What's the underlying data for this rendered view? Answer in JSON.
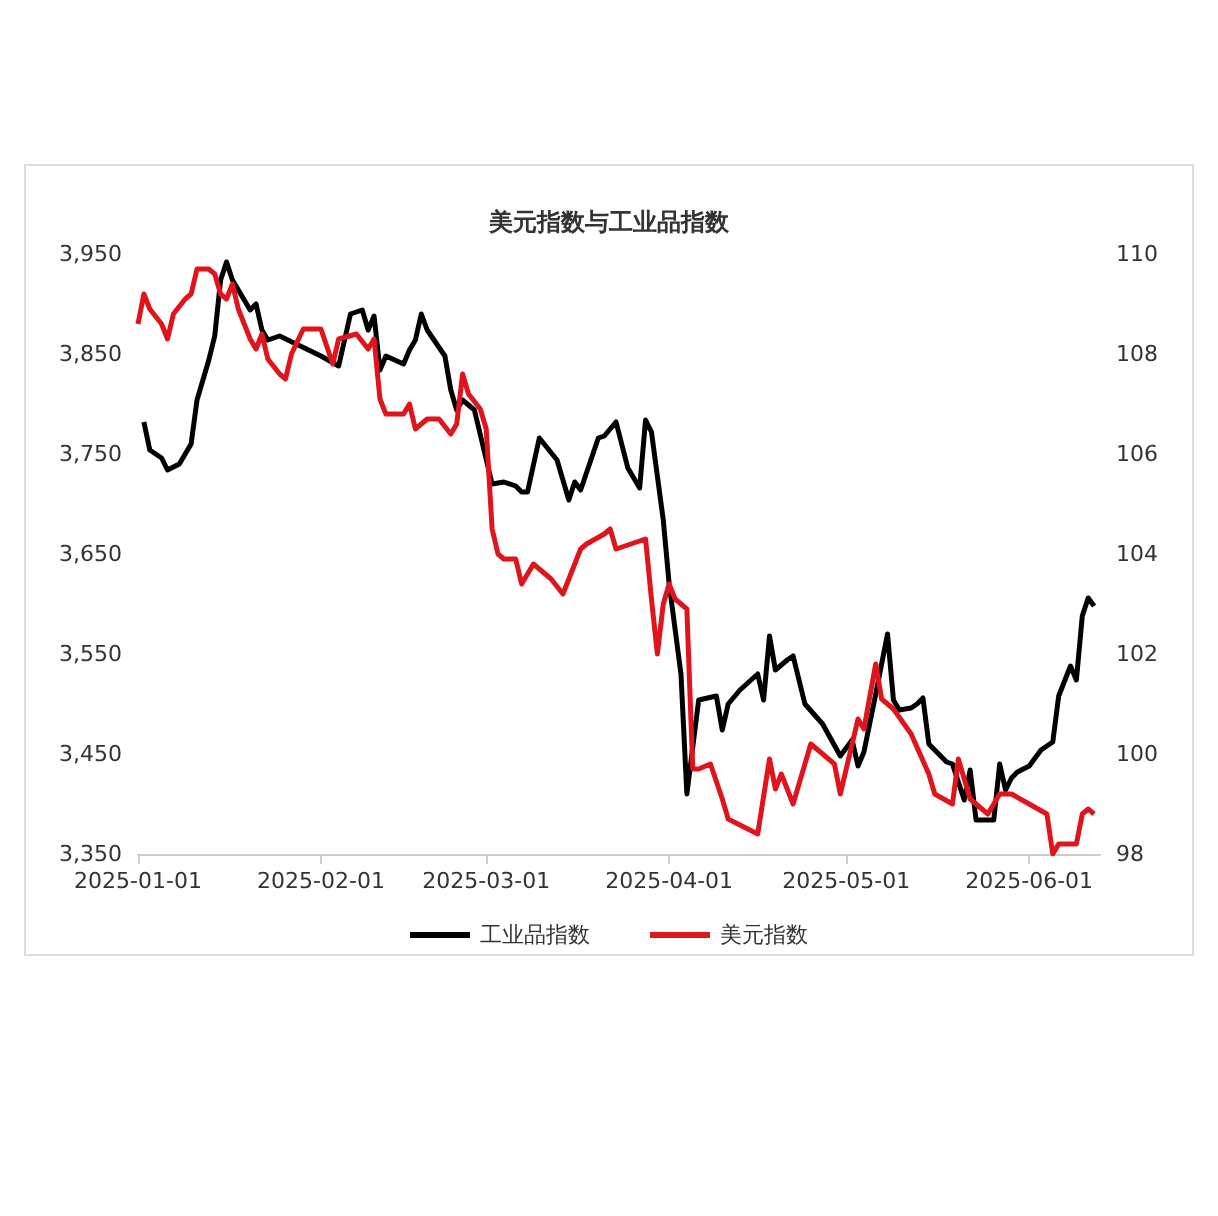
{
  "chart_data": {
    "type": "line",
    "title": "美元指数与工业品指数",
    "xlim": [
      "2025-01-01",
      "2025-06-13"
    ],
    "xticks": [
      "2025-01-01",
      "2025-02-01",
      "2025-03-01",
      "2025-04-01",
      "2025-05-01",
      "2025-06-01"
    ],
    "ylim": [
      3350,
      3950
    ],
    "yticks": [
      {
        "value": 3350,
        "label": "3,350"
      },
      {
        "value": 3450,
        "label": "3,450"
      },
      {
        "value": 3550,
        "label": "3,550"
      },
      {
        "value": 3650,
        "label": "3,650"
      },
      {
        "value": 3750,
        "label": "3,750"
      },
      {
        "value": 3850,
        "label": "3,850"
      },
      {
        "value": 3950,
        "label": "3,950"
      }
    ],
    "y2lim": [
      98,
      110
    ],
    "y2ticks": [
      98,
      100,
      102,
      104,
      106,
      108,
      110
    ],
    "grid": false,
    "legend": "bottom",
    "series": [
      {
        "name": "工业品指数",
        "color": "#000000",
        "x": [
          "2025-01-02",
          "2025-01-03",
          "2025-01-05",
          "2025-01-06",
          "2025-01-08",
          "2025-01-10",
          "2025-01-11",
          "2025-01-13",
          "2025-01-14",
          "2025-01-15",
          "2025-01-16",
          "2025-01-17",
          "2025-01-19",
          "2025-01-20",
          "2025-01-21",
          "2025-01-22",
          "2025-01-23",
          "2025-01-25",
          "2025-02-01",
          "2025-02-04",
          "2025-02-06",
          "2025-02-08",
          "2025-02-09",
          "2025-02-10",
          "2025-02-11",
          "2025-02-12",
          "2025-02-15",
          "2025-02-16",
          "2025-02-17",
          "2025-02-18",
          "2025-02-19",
          "2025-02-22",
          "2025-02-23",
          "2025-02-24",
          "2025-02-25",
          "2025-02-27",
          "2025-03-02",
          "2025-03-04",
          "2025-03-06",
          "2025-03-07",
          "2025-03-08",
          "2025-03-10",
          "2025-03-13",
          "2025-03-15",
          "2025-03-16",
          "2025-03-17",
          "2025-03-20",
          "2025-03-21",
          "2025-03-23",
          "2025-03-25",
          "2025-03-27",
          "2025-03-28",
          "2025-03-29",
          "2025-03-31",
          "2025-04-01",
          "2025-04-03",
          "2025-04-04",
          "2025-04-06",
          "2025-04-09",
          "2025-04-10",
          "2025-04-11",
          "2025-04-13",
          "2025-04-16",
          "2025-04-17",
          "2025-04-18",
          "2025-04-19",
          "2025-04-21",
          "2025-04-22",
          "2025-04-24",
          "2025-04-27",
          "2025-04-30",
          "2025-05-02",
          "2025-05-03",
          "2025-05-04",
          "2025-05-06",
          "2025-05-08",
          "2025-05-09",
          "2025-05-10",
          "2025-05-12",
          "2025-05-13",
          "2025-05-14",
          "2025-05-15",
          "2025-05-18",
          "2025-05-19",
          "2025-05-21",
          "2025-05-22",
          "2025-05-23",
          "2025-05-24",
          "2025-05-26",
          "2025-05-27",
          "2025-05-28",
          "2025-05-29",
          "2025-05-30",
          "2025-06-01",
          "2025-06-03",
          "2025-06-05",
          "2025-06-06",
          "2025-06-08",
          "2025-06-09",
          "2025-06-10",
          "2025-06-11",
          "2025-06-12"
        ],
        "values": [
          3782,
          3754,
          3746,
          3734,
          3740,
          3760,
          3804,
          3844,
          3868,
          3924,
          3942,
          3924,
          3904,
          3894,
          3900,
          3874,
          3864,
          3868,
          3848,
          3838,
          3890,
          3894,
          3874,
          3888,
          3834,
          3848,
          3840,
          3854,
          3864,
          3890,
          3874,
          3848,
          3814,
          3794,
          3804,
          3794,
          3720,
          3722,
          3718,
          3712,
          3712,
          3766,
          3744,
          3704,
          3722,
          3714,
          3766,
          3768,
          3782,
          3736,
          3716,
          3784,
          3772,
          3684,
          3620,
          3530,
          3410,
          3504,
          3508,
          3474,
          3500,
          3514,
          3530,
          3504,
          3568,
          3534,
          3544,
          3548,
          3500,
          3480,
          3448,
          3464,
          3438,
          3452,
          3510,
          3570,
          3504,
          3494,
          3496,
          3500,
          3506,
          3460,
          3442,
          3440,
          3404,
          3434,
          3384,
          3384,
          3384,
          3440,
          3414,
          3426,
          3432,
          3438,
          3454,
          3462,
          3508,
          3538,
          3524,
          3588,
          3606,
          3598
        ]
      },
      {
        "name": "美元指数",
        "color": "#e0141c",
        "axis": "y2",
        "x": [
          "2025-01-01",
          "2025-01-02",
          "2025-01-03",
          "2025-01-05",
          "2025-01-06",
          "2025-01-07",
          "2025-01-09",
          "2025-01-10",
          "2025-01-11",
          "2025-01-13",
          "2025-01-14",
          "2025-01-15",
          "2025-01-16",
          "2025-01-17",
          "2025-01-18",
          "2025-01-20",
          "2025-01-21",
          "2025-01-22",
          "2025-01-23",
          "2025-01-25",
          "2025-01-26",
          "2025-01-27",
          "2025-01-29",
          "2025-02-01",
          "2025-02-03",
          "2025-02-04",
          "2025-02-07",
          "2025-02-09",
          "2025-02-10",
          "2025-02-11",
          "2025-02-12",
          "2025-02-15",
          "2025-02-16",
          "2025-02-17",
          "2025-02-19",
          "2025-02-21",
          "2025-02-23",
          "2025-02-24",
          "2025-02-25",
          "2025-02-26",
          "2025-02-28",
          "2025-03-01",
          "2025-03-02",
          "2025-03-03",
          "2025-03-04",
          "2025-03-06",
          "2025-03-07",
          "2025-03-09",
          "2025-03-12",
          "2025-03-14",
          "2025-03-17",
          "2025-03-18",
          "2025-03-21",
          "2025-03-22",
          "2025-03-23",
          "2025-03-28",
          "2025-03-29",
          "2025-03-30",
          "2025-03-31",
          "2025-04-01",
          "2025-04-02",
          "2025-04-04",
          "2025-04-05",
          "2025-04-06",
          "2025-04-08",
          "2025-04-10",
          "2025-04-11",
          "2025-04-16",
          "2025-04-18",
          "2025-04-19",
          "2025-04-20",
          "2025-04-22",
          "2025-04-25",
          "2025-04-29",
          "2025-04-30",
          "2025-05-03",
          "2025-05-04",
          "2025-05-06",
          "2025-05-07",
          "2025-05-09",
          "2025-05-12",
          "2025-05-15",
          "2025-05-16",
          "2025-05-19",
          "2025-05-20",
          "2025-05-22",
          "2025-05-25",
          "2025-05-27",
          "2025-05-29",
          "2025-06-01",
          "2025-06-04",
          "2025-06-05",
          "2025-06-06",
          "2025-06-09",
          "2025-06-10",
          "2025-06-11",
          "2025-06-12"
        ],
        "values": [
          108.6,
          109.2,
          108.9,
          108.6,
          108.3,
          108.8,
          109.1,
          109.2,
          109.7,
          109.7,
          109.6,
          109.2,
          109.1,
          109.4,
          108.9,
          108.3,
          108.1,
          108.4,
          107.9,
          107.6,
          107.5,
          108.0,
          108.5,
          108.5,
          107.8,
          108.3,
          108.4,
          108.1,
          108.3,
          107.1,
          106.8,
          106.8,
          107.0,
          106.5,
          106.7,
          106.7,
          106.4,
          106.6,
          107.6,
          107.2,
          106.9,
          106.5,
          104.5,
          104.0,
          103.9,
          103.9,
          103.4,
          103.8,
          103.5,
          103.2,
          104.1,
          104.2,
          104.4,
          104.5,
          104.1,
          104.3,
          103.1,
          102.0,
          103.0,
          103.4,
          103.1,
          102.9,
          99.7,
          99.7,
          99.8,
          99.1,
          98.7,
          98.4,
          99.9,
          99.3,
          99.6,
          99.0,
          100.2,
          99.8,
          99.2,
          100.7,
          100.5,
          101.8,
          101.1,
          100.9,
          100.4,
          99.6,
          99.2,
          99.0,
          99.9,
          99.1,
          98.8,
          99.2,
          99.2,
          99.0,
          98.8,
          98.0,
          98.2,
          98.2,
          98.8,
          98.9,
          98.8
        ]
      }
    ]
  }
}
